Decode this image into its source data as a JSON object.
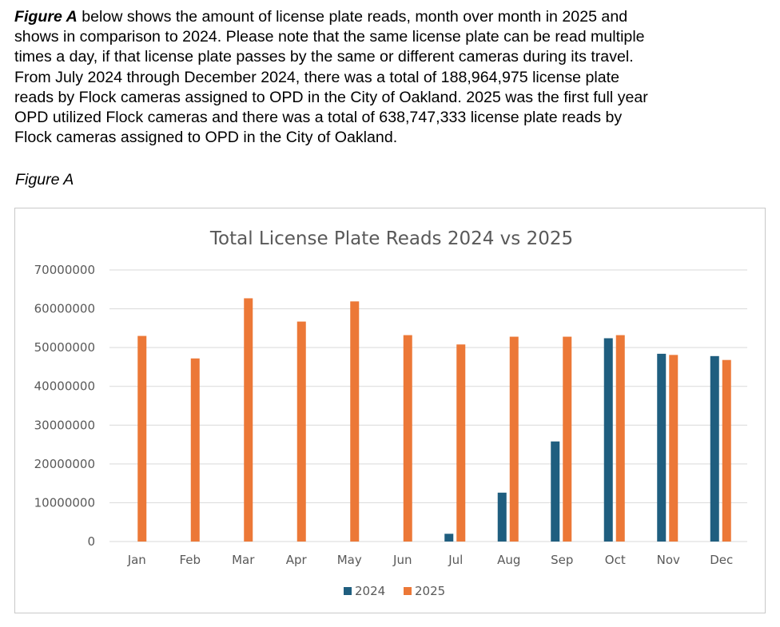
{
  "paragraph": {
    "lead": "Figure A",
    "line1_rest": " below shows the amount of license plate reads, month over month in 2025 and",
    "line2": "shows in comparison to 2024. Please note that the same license plate can be read multiple",
    "line3": "times a day, if that license plate passes by the same or different cameras during its travel.",
    "line4": "From July 2024 through December 2024, there was a total of 188,964,975 license plate",
    "line5": "reads by Flock cameras assigned to OPD in the City of Oakland.  2025 was the first full year",
    "line6": "OPD utilized Flock cameras and there was a total of 638,747,333 license plate reads by",
    "line7": "Flock cameras assigned to OPD in the City of Oakland."
  },
  "caption": "Figure A",
  "chart_data": {
    "type": "bar",
    "title": "Total License Plate Reads 2024 vs 2025",
    "xlabel": "",
    "ylabel": "",
    "categories": [
      "Jan",
      "Feb",
      "Mar",
      "Apr",
      "May",
      "Jun",
      "Jul",
      "Aug",
      "Sep",
      "Oct",
      "Nov",
      "Dec"
    ],
    "series": [
      {
        "name": "2024",
        "color": "#1f5e7f",
        "values": [
          null,
          null,
          null,
          null,
          null,
          null,
          2000000,
          12600000,
          25800000,
          52400000,
          48400000,
          47800000
        ]
      },
      {
        "name": "2025",
        "color": "#ec7837",
        "values": [
          53000000,
          47200000,
          62700000,
          56700000,
          61900000,
          53200000,
          50800000,
          52800000,
          52800000,
          53200000,
          48100000,
          46800000
        ]
      }
    ],
    "ylim": [
      0,
      70000000
    ],
    "yticks": [
      "0",
      "10000000",
      "20000000",
      "30000000",
      "40000000",
      "50000000",
      "60000000",
      "70000000"
    ],
    "grid": true,
    "legend": "bottom"
  }
}
